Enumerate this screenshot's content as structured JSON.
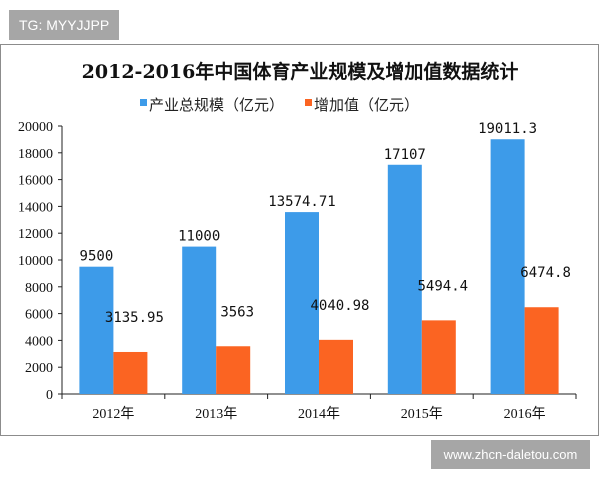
{
  "badge": "TG: MYYJJPP",
  "watermark": "www.zhcn-daletou.com",
  "chart_data": {
    "type": "bar",
    "title": "2012-2016年中国体育产业规模及增加值数据统计",
    "categories": [
      "2012年",
      "2013年",
      "2014年",
      "2015年",
      "2016年"
    ],
    "series": [
      {
        "name": "产业总规模（亿元）",
        "values": [
          9500,
          11000,
          13574.71,
          17107,
          19011.3
        ],
        "labels": [
          "9500",
          "11000",
          "13574.71",
          "17107",
          "19011.3"
        ],
        "color": "#3d9be9"
      },
      {
        "name": "增加值（亿元）",
        "values": [
          3135.95,
          3563,
          4040.98,
          5494.4,
          6474.8
        ],
        "labels": [
          "3135.95",
          "3563",
          "4040.98",
          "5494.4",
          "6474.8"
        ],
        "color": "#fb6422"
      }
    ],
    "ylim": [
      0,
      20000
    ],
    "yticks": [
      "0",
      "2000",
      "4000",
      "6000",
      "8000",
      "10000",
      "12000",
      "14000",
      "16000",
      "18000",
      "20000"
    ],
    "grid": false,
    "legend": "top-center"
  }
}
